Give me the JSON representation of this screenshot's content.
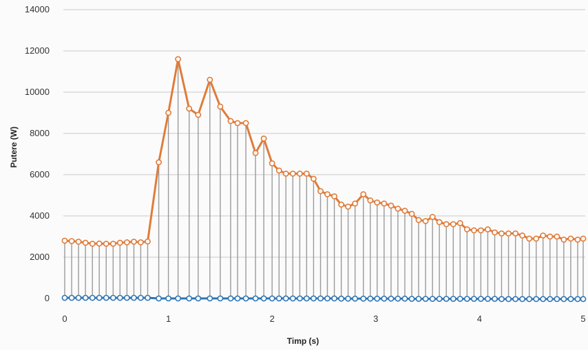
{
  "chart_data": {
    "type": "line",
    "title": "",
    "xlabel": "Timp (s)",
    "ylabel": "Putere (W)",
    "xlim": [
      0,
      5
    ],
    "ylim": [
      0,
      14000
    ],
    "x_ticks": [
      "0",
      "1",
      "2",
      "3",
      "4",
      "5"
    ],
    "y_ticks": [
      "0",
      "2000",
      "4000",
      "6000",
      "8000",
      "10000",
      "12000",
      "14000"
    ],
    "grid": true,
    "legend": "none",
    "colors": {
      "upper_series": "#e07b39",
      "lower_series": "#2e75b6",
      "drop_lines": "#9a9a9a",
      "marker_fill": "#ffffff",
      "grid": "#c9c9c9"
    },
    "series": [
      {
        "values": [
          [
            0.0,
            2800
          ],
          [
            0.067,
            2780
          ],
          [
            0.133,
            2750
          ],
          [
            0.2,
            2700
          ],
          [
            0.267,
            2650
          ],
          [
            0.333,
            2660
          ],
          [
            0.4,
            2650
          ],
          [
            0.467,
            2650
          ],
          [
            0.533,
            2700
          ],
          [
            0.6,
            2720
          ],
          [
            0.667,
            2750
          ],
          [
            0.733,
            2720
          ],
          [
            0.8,
            2760
          ],
          [
            0.907,
            6600
          ],
          [
            1.0,
            9000
          ],
          [
            1.093,
            11600
          ],
          [
            1.2,
            9200
          ],
          [
            1.287,
            8900
          ],
          [
            1.4,
            10600
          ],
          [
            1.5,
            9300
          ],
          [
            1.6,
            8600
          ],
          [
            1.667,
            8500
          ],
          [
            1.747,
            8500
          ],
          [
            1.84,
            7050
          ],
          [
            1.92,
            7750
          ],
          [
            2.0,
            6550
          ],
          [
            2.067,
            6200
          ],
          [
            2.133,
            6050
          ],
          [
            2.2,
            6050
          ],
          [
            2.267,
            6050
          ],
          [
            2.333,
            6050
          ],
          [
            2.4,
            5800
          ],
          [
            2.467,
            5200
          ],
          [
            2.533,
            5050
          ],
          [
            2.6,
            4950
          ],
          [
            2.667,
            4550
          ],
          [
            2.733,
            4450
          ],
          [
            2.8,
            4600
          ],
          [
            2.88,
            5050
          ],
          [
            2.947,
            4750
          ],
          [
            3.013,
            4650
          ],
          [
            3.08,
            4600
          ],
          [
            3.147,
            4500
          ],
          [
            3.213,
            4350
          ],
          [
            3.28,
            4250
          ],
          [
            3.347,
            4100
          ],
          [
            3.413,
            3800
          ],
          [
            3.48,
            3750
          ],
          [
            3.547,
            3950
          ],
          [
            3.613,
            3700
          ],
          [
            3.68,
            3600
          ],
          [
            3.747,
            3600
          ],
          [
            3.813,
            3650
          ],
          [
            3.88,
            3350
          ],
          [
            3.947,
            3300
          ],
          [
            4.013,
            3300
          ],
          [
            4.08,
            3350
          ],
          [
            4.147,
            3200
          ],
          [
            4.213,
            3150
          ],
          [
            4.28,
            3150
          ],
          [
            4.347,
            3150
          ],
          [
            4.413,
            3050
          ],
          [
            4.48,
            2900
          ],
          [
            4.547,
            2900
          ],
          [
            4.613,
            3050
          ],
          [
            4.68,
            3000
          ],
          [
            4.747,
            3000
          ],
          [
            4.813,
            2850
          ],
          [
            4.88,
            2900
          ],
          [
            4.947,
            2850
          ],
          [
            5.0,
            2900
          ]
        ]
      },
      {
        "values": [
          [
            0.0,
            30
          ],
          [
            0.067,
            30
          ],
          [
            0.133,
            30
          ],
          [
            0.2,
            30
          ],
          [
            0.267,
            30
          ],
          [
            0.333,
            30
          ],
          [
            0.4,
            30
          ],
          [
            0.467,
            30
          ],
          [
            0.533,
            30
          ],
          [
            0.6,
            30
          ],
          [
            0.667,
            30
          ],
          [
            0.733,
            30
          ],
          [
            0.8,
            30
          ],
          [
            0.907,
            0
          ],
          [
            1.0,
            0
          ],
          [
            1.093,
            0
          ],
          [
            1.2,
            0
          ],
          [
            1.287,
            0
          ],
          [
            1.4,
            0
          ],
          [
            1.5,
            0
          ],
          [
            1.6,
            0
          ],
          [
            1.667,
            0
          ],
          [
            1.747,
            0
          ],
          [
            1.84,
            0
          ],
          [
            1.92,
            0
          ],
          [
            2.0,
            0
          ],
          [
            2.067,
            0
          ],
          [
            2.133,
            0
          ],
          [
            2.2,
            0
          ],
          [
            2.267,
            0
          ],
          [
            2.333,
            0
          ],
          [
            2.4,
            0
          ],
          [
            2.467,
            0
          ],
          [
            2.533,
            0
          ],
          [
            2.6,
            0
          ],
          [
            2.667,
            -10
          ],
          [
            2.733,
            -10
          ],
          [
            2.8,
            -10
          ],
          [
            2.88,
            -10
          ],
          [
            2.947,
            -10
          ],
          [
            3.013,
            -10
          ],
          [
            3.08,
            -10
          ],
          [
            3.147,
            -10
          ],
          [
            3.213,
            -10
          ],
          [
            3.28,
            -10
          ],
          [
            3.347,
            -20
          ],
          [
            3.413,
            -20
          ],
          [
            3.48,
            -20
          ],
          [
            3.547,
            -20
          ],
          [
            3.613,
            -20
          ],
          [
            3.68,
            -20
          ],
          [
            3.747,
            -20
          ],
          [
            3.813,
            -20
          ],
          [
            3.88,
            -20
          ],
          [
            3.947,
            -20
          ],
          [
            4.013,
            -20
          ],
          [
            4.08,
            -20
          ],
          [
            4.147,
            -20
          ],
          [
            4.213,
            -30
          ],
          [
            4.28,
            -30
          ],
          [
            4.347,
            -30
          ],
          [
            4.413,
            -30
          ],
          [
            4.48,
            -30
          ],
          [
            4.547,
            -30
          ],
          [
            4.613,
            -30
          ],
          [
            4.68,
            -30
          ],
          [
            4.747,
            -30
          ],
          [
            4.813,
            -30
          ],
          [
            4.88,
            -30
          ],
          [
            4.947,
            -30
          ],
          [
            5.0,
            -30
          ]
        ]
      }
    ]
  }
}
